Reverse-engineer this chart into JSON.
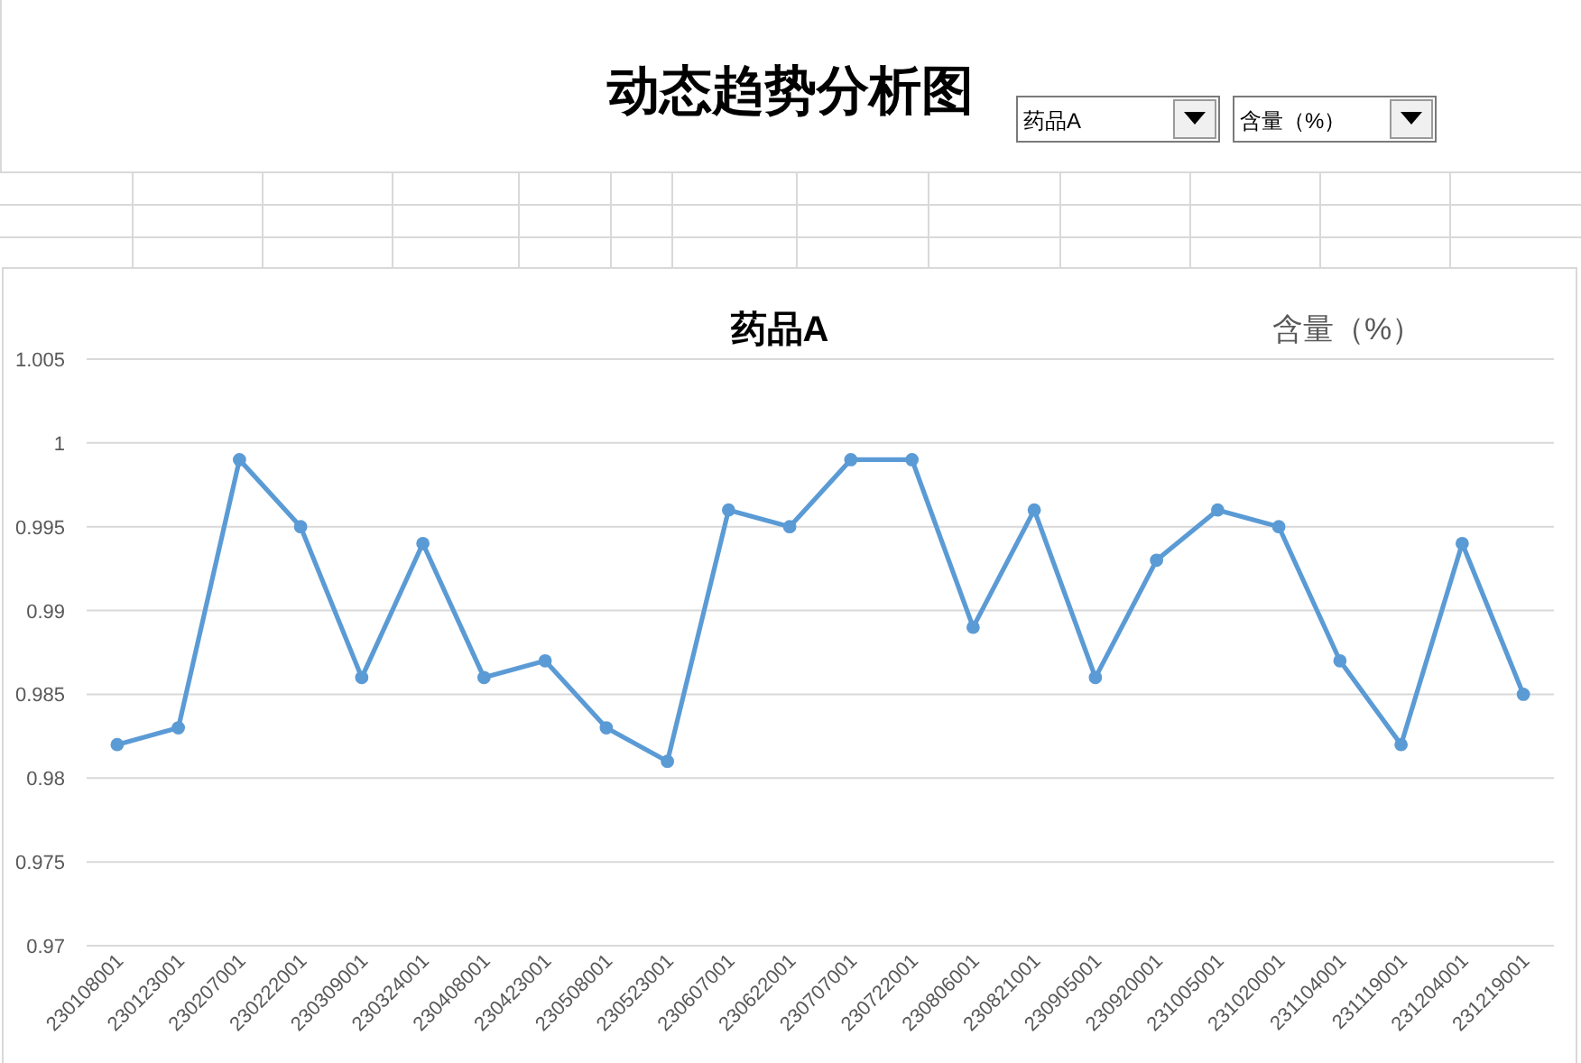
{
  "chart_data": {
    "type": "line",
    "title": "动态趋势分析图",
    "subtitle": "药品A",
    "ylabel": "含量（%）",
    "categories": [
      "230108001",
      "230123001",
      "230207001",
      "230222001",
      "230309001",
      "230324001",
      "230408001",
      "230423001",
      "230508001",
      "230523001",
      "230607001",
      "230622001",
      "230707001",
      "230722001",
      "230806001",
      "230821001",
      "230905001",
      "230920001",
      "231005001",
      "231020001",
      "231104001",
      "231119001",
      "231204001",
      "231219001"
    ],
    "series": [
      {
        "color": "#5b9bd5",
        "values": [
          0.982,
          0.983,
          0.999,
          0.995,
          0.986,
          0.994,
          0.986,
          0.987,
          0.983,
          0.981,
          0.996,
          0.995,
          0.999,
          0.999,
          0.989,
          0.996,
          0.986,
          0.993,
          0.996,
          0.995,
          0.987,
          0.982,
          0.994,
          0.985
        ]
      }
    ],
    "ylim": [
      0.97,
      1.005
    ],
    "yticks": [
      0.97,
      0.975,
      0.98,
      0.985,
      0.99,
      0.995,
      1,
      1.005
    ],
    "grid": "y",
    "marker": "circle",
    "line_style": "solid"
  }
}
